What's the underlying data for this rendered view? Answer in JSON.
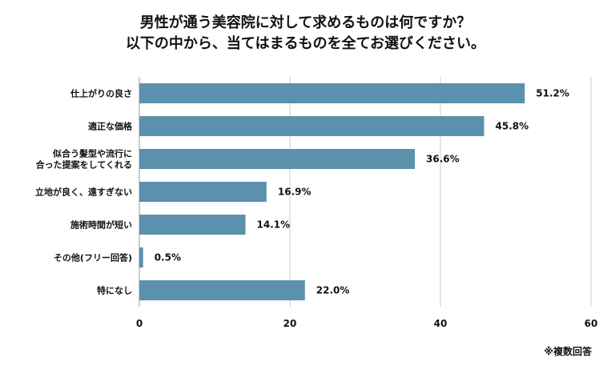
{
  "chart_data": {
    "type": "bar",
    "orientation": "horizontal",
    "title_lines": [
      "男性が通う美容院に対して求めるものは何ですか？",
      "以下の中から、当てはまるものを全てお選びください。"
    ],
    "categories": [
      [
        "仕上がりの良さ"
      ],
      [
        "適正な価格"
      ],
      [
        "似合う髪型や流行に",
        "合った提案をしてくれる"
      ],
      [
        "立地が良く、遠すぎない"
      ],
      [
        "施術時間が短い"
      ],
      [
        "その他(フリー回答)"
      ],
      [
        "特になし"
      ]
    ],
    "values": [
      51.2,
      45.8,
      36.6,
      16.9,
      14.1,
      0.5,
      22.0
    ],
    "value_labels": [
      "51.2%",
      "45.8%",
      "36.6%",
      "16.9%",
      "14.1%",
      "0.5%",
      "22.0%"
    ],
    "xlim": [
      0,
      60
    ],
    "ticks": [
      0,
      20,
      40,
      60
    ],
    "grid": true,
    "bar_color": "#5b91ad",
    "grid_color": "#cccccc",
    "footnote": "※複数回答"
  }
}
